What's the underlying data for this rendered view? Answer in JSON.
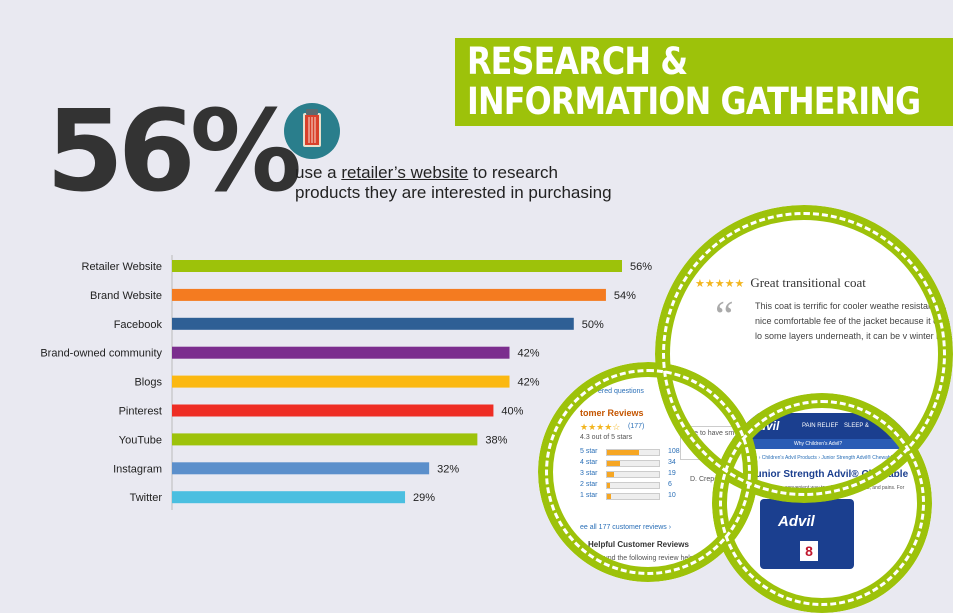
{
  "header": {
    "title_line1": "RESEARCH &",
    "title_line2": "INFORMATION GATHERING"
  },
  "stat": {
    "value": "56%",
    "desc_prefix": "use a ",
    "desc_link": "retailer’s website",
    "desc_suffix": " to research",
    "desc_line2": "products they are interested in purchasing",
    "icon": "receipt-icon"
  },
  "colors": {
    "accent_green": "#9dc20a",
    "background": "#e9e9f1"
  },
  "chart_data": {
    "type": "bar",
    "orientation": "horizontal",
    "categories": [
      "Retailer Website",
      "Brand Website",
      "Facebook",
      "Brand-owned community",
      "Blogs",
      "Pinterest",
      "YouTube",
      "Instagram",
      "Twitter"
    ],
    "values": [
      56,
      54,
      50,
      42,
      42,
      40,
      38,
      32,
      29
    ],
    "value_labels": [
      "56%",
      "54%",
      "50%",
      "42%",
      "42%",
      "40%",
      "38%",
      "32%",
      "29%"
    ],
    "colors": [
      "#9dc20a",
      "#f47b20",
      "#2e5f95",
      "#7b2d8e",
      "#fbb811",
      "#ee2d24",
      "#9dc20a",
      "#5b8fcb",
      "#4bbfe0"
    ],
    "xlim": [
      0,
      60
    ],
    "title": "",
    "xlabel": "",
    "ylabel": ""
  },
  "screenshots": {
    "review": {
      "stars": "★★★★★",
      "heading": "Great transitional coat",
      "quote": "“",
      "body": "This coat is terrific for cooler weathe resistant, with a nice comfortable fee of the jacket because it covers my lo some layers underneath, it can be v winter here."
    },
    "ratings": {
      "header": "ered questions",
      "title": "tomer Reviews",
      "summary": "4.3 out of 5 stars",
      "count": "(177)",
      "rows": [
        {
          "label": "5 star",
          "count": "108",
          "fill": 0.62
        },
        {
          "label": "4 star",
          "count": "34",
          "fill": 0.25
        },
        {
          "label": "3 star",
          "count": "19",
          "fill": 0.13
        },
        {
          "label": "2 star",
          "count": "6",
          "fill": 0.05
        },
        {
          "label": "1 star",
          "count": "10",
          "fill": 0.08
        }
      ],
      "note": "Nice to have sm bags.",
      "note_author": "D. Crepe",
      "see_all": "ee all 177 customer reviews ›",
      "helpful": "Helpful Customer Reviews",
      "found": "found the following review helpful"
    },
    "product": {
      "brand": "Advil",
      "nav1": "PAIN RELIEF",
      "nav2": "SLEEP &",
      "sublink": "Why Children's Advil?",
      "crumb": "Home › Children's Advil Products › Junior Strength Advil® Chewable",
      "title": "Junior Strength Advil® Chewable",
      "tagline": "A great-tasting, convenient way to relieve fever, aches, and pains. For",
      "box_brand": "Advil",
      "box_num": "8"
    }
  }
}
